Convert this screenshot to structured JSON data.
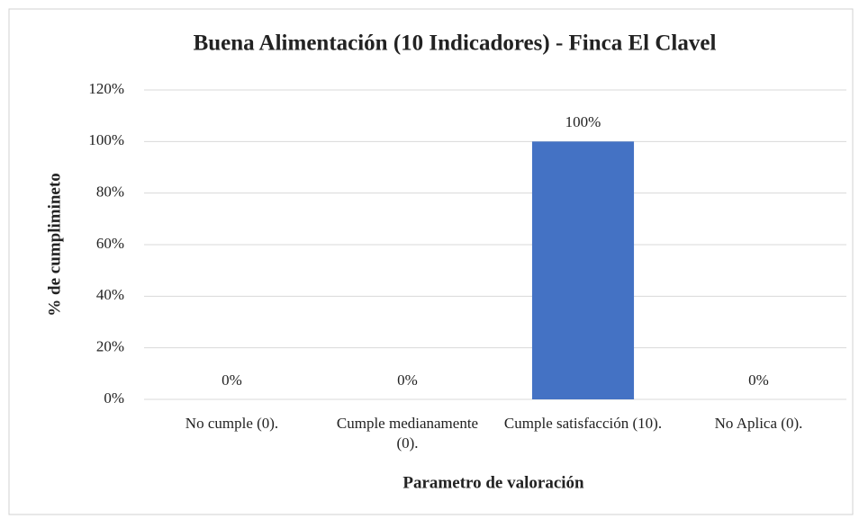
{
  "chart_data": {
    "type": "bar",
    "title": "Buena Alimentación  (10 Indicadores) - Finca El Clavel",
    "x_label": "Parametro  de valoración",
    "y_label": "% de cumplimineto",
    "categories": [
      "No cumple (0).",
      "Cumple medianamente (0).",
      "Cumple satisfacción (10).",
      "No Aplica (0)."
    ],
    "values": [
      0,
      0,
      100,
      0
    ],
    "value_labels": [
      "0%",
      "0%",
      "100%",
      "0%"
    ],
    "color": "#4472c4",
    "ylim": [
      0,
      120
    ],
    "yticks": [
      {
        "value": 0,
        "label": "0%"
      },
      {
        "value": 20,
        "label": "20%"
      },
      {
        "value": 40,
        "label": "40%"
      },
      {
        "value": 60,
        "label": "60%"
      },
      {
        "value": 80,
        "label": "80%"
      },
      {
        "value": 100,
        "label": "100%"
      },
      {
        "value": 120,
        "label": "120%"
      }
    ],
    "grid": true
  }
}
